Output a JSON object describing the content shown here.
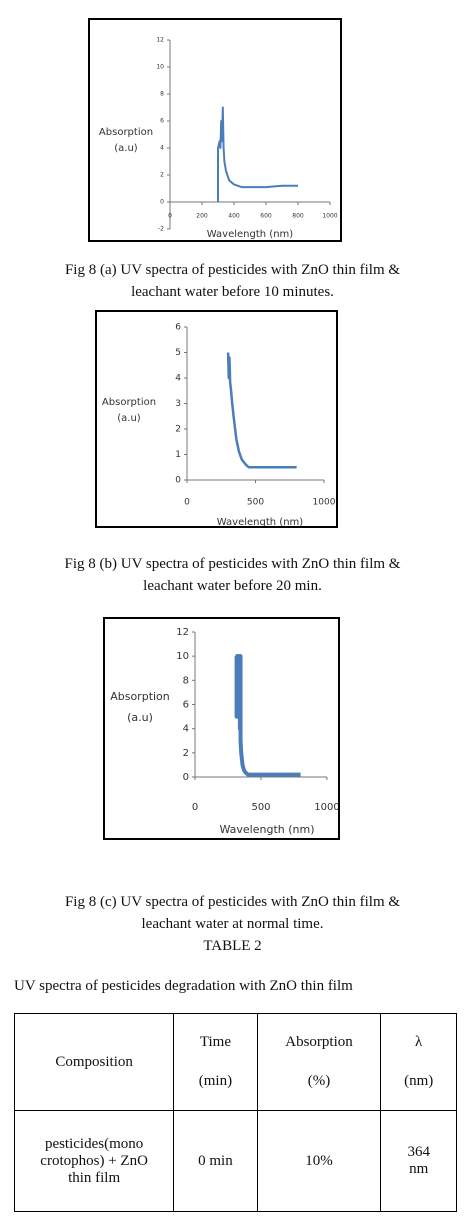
{
  "chart_data": [
    {
      "type": "line",
      "y_label": [
        "Absorption",
        "(a.u)"
      ],
      "x_label": "Wavelength (nm)",
      "xlim": [
        0,
        1000
      ],
      "xticks": [
        0,
        200,
        400,
        600,
        800,
        1000
      ],
      "ylim": [
        -2,
        12
      ],
      "yticks": [
        -2,
        0,
        2,
        4,
        6,
        8,
        10,
        12
      ],
      "x": [
        300,
        300,
        310,
        315,
        320,
        325,
        330,
        335,
        340,
        350,
        370,
        400,
        450,
        500,
        600,
        700,
        800
      ],
      "series": [
        {
          "color": "#4a7ebb",
          "values": [
            0,
            4,
            4.5,
            4,
            6,
            4.5,
            7,
            4,
            3,
            2.3,
            1.6,
            1.3,
            1.1,
            1.1,
            1.1,
            1.2,
            1.2
          ]
        }
      ]
    },
    {
      "type": "line",
      "y_label": [
        "Absorption",
        "(a.u)"
      ],
      "x_label": "Wavelength (nm)",
      "xlim": [
        0,
        1000
      ],
      "xticks": [
        0,
        500,
        1000
      ],
      "ylim": [
        0,
        6
      ],
      "yticks": [
        0,
        1,
        2,
        3,
        4,
        5,
        6
      ],
      "x": [
        300,
        305,
        310,
        315,
        320,
        330,
        340,
        360,
        380,
        400,
        430,
        450,
        500,
        600,
        700,
        800
      ],
      "series": [
        {
          "color": "#4a7ebb",
          "values": [
            5,
            4,
            4.8,
            3.8,
            3.6,
            3,
            2.5,
            1.6,
            1.1,
            0.8,
            0.6,
            0.5,
            0.5,
            0.5,
            0.5,
            0.5
          ]
        }
      ]
    },
    {
      "type": "line",
      "y_label": [
        "Absorption",
        "(a.u)"
      ],
      "x_label": "Wavelength (nm)",
      "xlim": [
        0,
        1000
      ],
      "xticks": [
        0,
        500,
        1000
      ],
      "ylim": [
        0,
        12
      ],
      "yticks": [
        0,
        2,
        4,
        6,
        8,
        10,
        12
      ],
      "x": [
        310,
        315,
        315,
        320,
        320,
        325,
        325,
        330,
        330,
        335,
        335,
        340,
        340,
        345,
        345,
        350,
        355,
        360,
        370,
        380,
        400,
        450,
        500,
        600,
        700,
        800
      ],
      "series": [
        {
          "color": "#4a7ebb",
          "values": [
            10,
            10,
            5,
            10,
            5,
            10,
            5,
            10,
            5,
            10,
            6,
            10,
            4,
            10,
            3,
            2,
            1.5,
            1,
            0.6,
            0.4,
            0.2,
            0.2,
            0.2,
            0.2,
            0.2,
            0.2
          ]
        }
      ]
    }
  ],
  "captions": [
    [
      "Fig 8 (a) UV spectra of pesticides with ZnO thin film &",
      "leachant water before 10 minutes."
    ],
    [
      "Fig 8 (b) UV spectra of pesticides with ZnO thin film &",
      "leachant water before 20 min."
    ],
    [
      "Fig 8 (c) UV spectra of pesticides with ZnO thin film &",
      "leachant water at normal time."
    ]
  ],
  "table_title": "TABLE 2",
  "table_caption": "UV spectra of pesticides degradation with ZnO thin film",
  "table": {
    "header": [
      [
        "Composition"
      ],
      [
        "Time",
        "(min)"
      ],
      [
        "Absorption",
        "(%)"
      ],
      [
        "λ",
        "(nm)"
      ]
    ],
    "rows": [
      [
        "pesticides(mono crotophos) + ZnO thin film",
        "0 min",
        "10%",
        "364 nm"
      ]
    ]
  }
}
